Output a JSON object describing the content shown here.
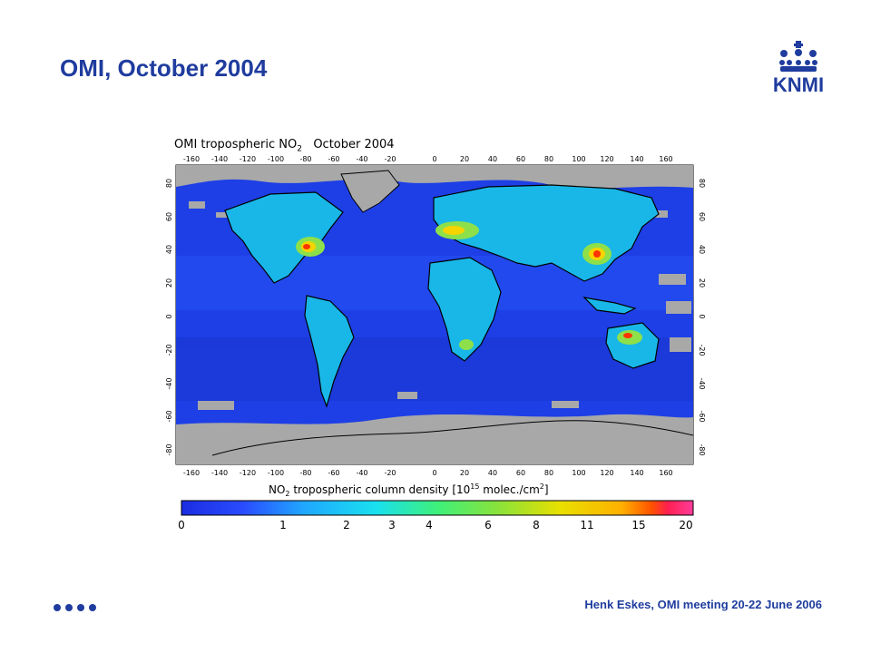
{
  "slide": {
    "title": "OMI, October 2004",
    "footer": "Henk Eskes, OMI meeting 20-22 June 2006",
    "logo_text": "KNMI"
  },
  "map": {
    "title_prefix": "OMI tropospheric NO",
    "title_sub": "2",
    "title_suffix": "   October 2004",
    "lon_ticks": [
      "-160",
      "-140",
      "-120",
      "-100",
      "-80",
      "-60",
      "-40",
      "-20",
      "0",
      "20",
      "40",
      "60",
      "80",
      "100",
      "120",
      "140",
      "160"
    ],
    "lat_ticks": [
      "80",
      "60",
      "40",
      "20",
      "0",
      "-20",
      "-40",
      "-60",
      "-80"
    ],
    "colorbar_label_prefix": "NO",
    "colorbar_label_sub": "2",
    "colorbar_label_suffix": " tropospheric column density [10",
    "colorbar_label_sup": "15",
    "colorbar_label_unit": " molec./cm",
    "colorbar_label_unit_sup": "2",
    "colorbar_label_end": "]",
    "colorbar_ticks": [
      "0",
      "1",
      "2",
      "3",
      "4",
      "6",
      "8",
      "11",
      "15",
      "20"
    ],
    "colors": {
      "ocean": "#1e3fe6",
      "no_data": "#a8a8a8",
      "high": "#ff3300"
    }
  }
}
